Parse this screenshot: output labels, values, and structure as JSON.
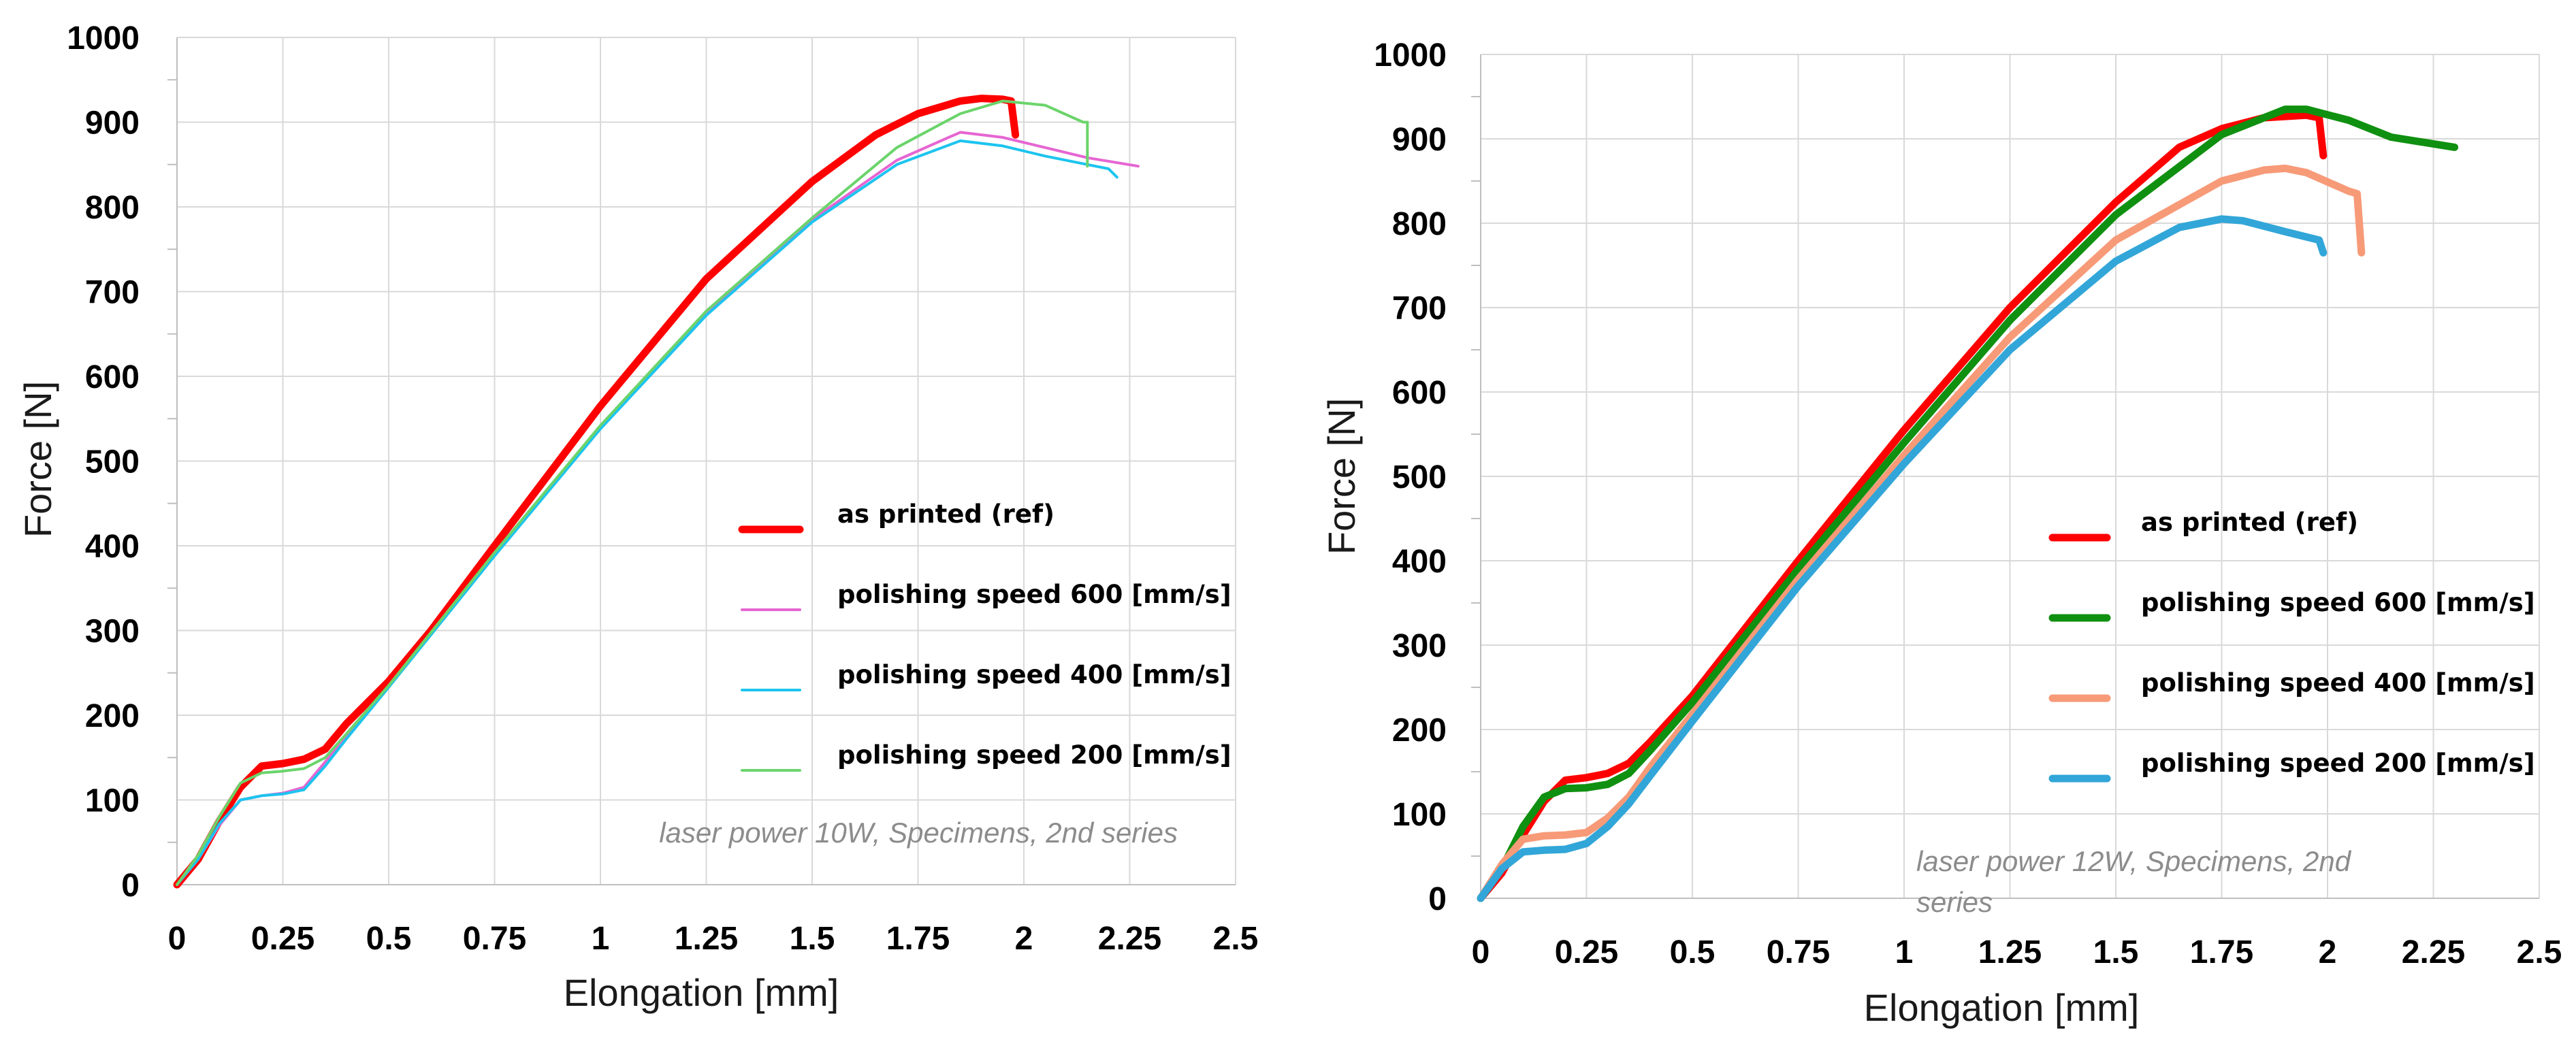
{
  "chart_data": [
    {
      "type": "line",
      "title": "",
      "xlabel": "Elongation [mm]",
      "ylabel": "Force [N]",
      "xlim": [
        0,
        2.5
      ],
      "ylim": [
        0,
        1000
      ],
      "xticks": [
        0,
        0.25,
        0.5,
        0.75,
        1,
        1.25,
        1.5,
        1.75,
        2,
        2.25,
        2.5
      ],
      "xtick_labels": [
        "0",
        "0.25",
        "0.5",
        "0.75",
        "1",
        "1.25",
        "1.5",
        "1.75",
        "2",
        "2.25",
        "2.5"
      ],
      "yticks": [
        0,
        100,
        200,
        300,
        400,
        500,
        600,
        700,
        800,
        900,
        1000
      ],
      "ytick_labels": [
        "0",
        "100",
        "200",
        "300",
        "400",
        "500",
        "600",
        "700",
        "800",
        "900",
        "1000"
      ],
      "grid": true,
      "legend_position": "center-right",
      "annotation": "laser power 10W, Specimens, 2nd series",
      "series": [
        {
          "name": "as printed (ref)",
          "color": "#ff0000",
          "width": "thick",
          "x": [
            0,
            0.05,
            0.1,
            0.15,
            0.2,
            0.25,
            0.3,
            0.35,
            0.4,
            0.5,
            0.6,
            0.75,
            1.0,
            1.25,
            1.5,
            1.65,
            1.75,
            1.85,
            1.9,
            1.95,
            1.97,
            1.98
          ],
          "y": [
            0,
            30,
            75,
            115,
            140,
            143,
            148,
            160,
            190,
            240,
            300,
            400,
            565,
            715,
            830,
            885,
            910,
            925,
            928,
            927,
            925,
            885
          ]
        },
        {
          "name": "polishing speed 600 [mm/s]",
          "color": "#e665d2",
          "width": "thin",
          "x": [
            0,
            0.05,
            0.1,
            0.15,
            0.2,
            0.25,
            0.3,
            0.35,
            0.4,
            0.5,
            0.75,
            1.0,
            1.25,
            1.5,
            1.7,
            1.85,
            1.95,
            2.05,
            2.15,
            2.27
          ],
          "y": [
            0,
            30,
            70,
            100,
            105,
            108,
            115,
            145,
            175,
            235,
            390,
            540,
            675,
            785,
            855,
            888,
            882,
            870,
            858,
            848
          ]
        },
        {
          "name": "polishing speed 400 [mm/s]",
          "color": "#1cc4ef",
          "width": "thin",
          "x": [
            0,
            0.05,
            0.1,
            0.15,
            0.2,
            0.25,
            0.3,
            0.35,
            0.4,
            0.5,
            0.75,
            1.0,
            1.25,
            1.5,
            1.7,
            1.85,
            1.95,
            2.05,
            2.15,
            2.2,
            2.22
          ],
          "y": [
            0,
            30,
            72,
            100,
            105,
            107,
            112,
            140,
            172,
            233,
            388,
            538,
            672,
            782,
            850,
            878,
            872,
            860,
            850,
            845,
            835
          ]
        },
        {
          "name": "polishing speed 200 [mm/s]",
          "color": "#6bd46b",
          "width": "thin",
          "x": [
            0,
            0.05,
            0.1,
            0.15,
            0.2,
            0.25,
            0.3,
            0.35,
            0.4,
            0.5,
            0.75,
            1.0,
            1.25,
            1.5,
            1.7,
            1.85,
            1.95,
            2.05,
            2.14,
            2.15,
            2.15
          ],
          "y": [
            0,
            35,
            80,
            120,
            132,
            134,
            137,
            150,
            178,
            235,
            392,
            542,
            677,
            787,
            870,
            910,
            925,
            920,
            900,
            900,
            848
          ]
        }
      ]
    },
    {
      "type": "line",
      "title": "",
      "xlabel": "Elongation [mm]",
      "ylabel": "Force [N]",
      "xlim": [
        0,
        2.5
      ],
      "ylim": [
        0,
        1000
      ],
      "xticks": [
        0,
        0.25,
        0.5,
        0.75,
        1,
        1.25,
        1.5,
        1.75,
        2,
        2.25,
        2.5
      ],
      "xtick_labels": [
        "0",
        "0.25",
        "0.5",
        "0.75",
        "1",
        "1.25",
        "1.5",
        "1.75",
        "2",
        "2.25",
        "2.5"
      ],
      "yticks": [
        0,
        100,
        200,
        300,
        400,
        500,
        600,
        700,
        800,
        900,
        1000
      ],
      "ytick_labels": [
        "0",
        "100",
        "200",
        "300",
        "400",
        "500",
        "600",
        "700",
        "800",
        "900",
        "1000"
      ],
      "grid": true,
      "legend_position": "center-right",
      "annotation": "laser power 12W, Specimens, 2nd series",
      "series": [
        {
          "name": "as printed (ref)",
          "color": "#ff0000",
          "width": "thick",
          "x": [
            0,
            0.05,
            0.1,
            0.15,
            0.2,
            0.25,
            0.3,
            0.35,
            0.4,
            0.5,
            0.75,
            1.0,
            1.25,
            1.5,
            1.65,
            1.75,
            1.85,
            1.95,
            1.98,
            1.99
          ],
          "y": [
            0,
            30,
            75,
            115,
            140,
            143,
            148,
            160,
            185,
            240,
            400,
            555,
            700,
            825,
            890,
            912,
            925,
            928,
            925,
            880
          ]
        },
        {
          "name": "polishing speed 600 [mm/s]",
          "color": "#109010",
          "width": "thick",
          "x": [
            0,
            0.05,
            0.1,
            0.15,
            0.2,
            0.25,
            0.3,
            0.35,
            0.4,
            0.5,
            0.75,
            1.0,
            1.25,
            1.5,
            1.75,
            1.9,
            1.95,
            2.05,
            2.15,
            2.3
          ],
          "y": [
            0,
            35,
            85,
            120,
            130,
            131,
            135,
            148,
            175,
            232,
            390,
            540,
            685,
            810,
            905,
            935,
            935,
            922,
            902,
            890
          ]
        },
        {
          "name": "polishing speed 400 [mm/s]",
          "color": "#f79a78",
          "width": "thick",
          "x": [
            0,
            0.05,
            0.1,
            0.15,
            0.2,
            0.25,
            0.3,
            0.35,
            0.4,
            0.5,
            0.75,
            1.0,
            1.25,
            1.5,
            1.75,
            1.85,
            1.9,
            1.95,
            2.05,
            2.07,
            2.08
          ],
          "y": [
            0,
            40,
            70,
            74,
            75,
            78,
            95,
            120,
            155,
            218,
            378,
            525,
            665,
            780,
            850,
            863,
            865,
            860,
            838,
            835,
            765
          ]
        },
        {
          "name": "polishing speed 200 [mm/s]",
          "color": "#32a6d8",
          "width": "thick",
          "x": [
            0,
            0.05,
            0.1,
            0.15,
            0.2,
            0.25,
            0.3,
            0.35,
            0.4,
            0.5,
            0.75,
            1.0,
            1.25,
            1.5,
            1.65,
            1.75,
            1.8,
            1.9,
            1.98,
            1.99
          ],
          "y": [
            0,
            35,
            55,
            57,
            58,
            65,
            85,
            112,
            145,
            210,
            370,
            515,
            650,
            755,
            795,
            805,
            803,
            790,
            780,
            765
          ]
        }
      ]
    }
  ]
}
